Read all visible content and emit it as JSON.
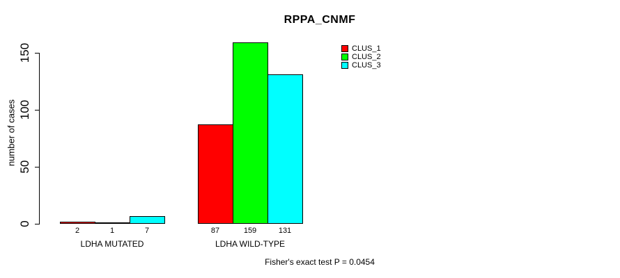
{
  "chart_data": {
    "type": "bar",
    "title": "RPPA_CNMF",
    "ylabel": "number of cases",
    "xlabel": "",
    "categories": [
      "LDHA MUTATED",
      "LDHA WILD-TYPE"
    ],
    "series": [
      {
        "name": "CLUS_1",
        "color": "#ff0000",
        "values": [
          2,
          87
        ]
      },
      {
        "name": "CLUS_2",
        "color": "#00ff00",
        "values": [
          1,
          159
        ]
      },
      {
        "name": "CLUS_3",
        "color": "#00ffff",
        "values": [
          7,
          131
        ]
      }
    ],
    "yticks": [
      0,
      50,
      100,
      150
    ],
    "ylim": [
      0,
      160
    ],
    "grid": false,
    "legend_position": "top-right",
    "annotation": "Fisher's exact test P = 0.0454"
  }
}
